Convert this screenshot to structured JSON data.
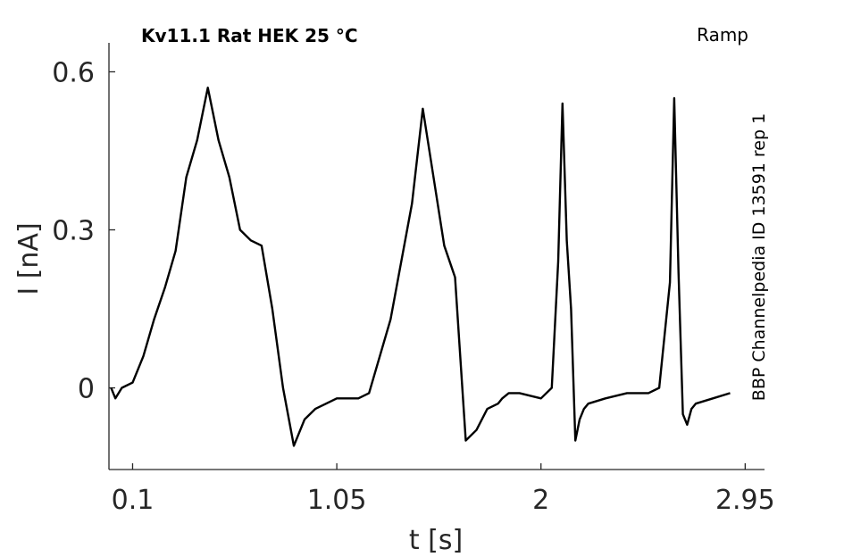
{
  "chart_data": {
    "type": "line",
    "title": "Kv11.1  Rat  HEK  25 °C",
    "protocol_label": "Ramp",
    "side_label": "BBP Channelpedia ID 13591 rep 1",
    "xlabel": "t [s]",
    "ylabel": "I [nA]",
    "xlim": [
      -0.01,
      3.04
    ],
    "ylim": [
      -0.155,
      0.655
    ],
    "xticks": [
      0.1,
      1.05,
      2,
      2.95
    ],
    "xtick_labels": [
      "0.1",
      "1.05",
      "2",
      "2.95"
    ],
    "yticks": [
      0,
      0.3,
      0.6
    ],
    "ytick_labels": [
      "0",
      "0.3",
      "0.6"
    ],
    "grid": false,
    "line_color": "#000000",
    "series": [
      {
        "x": [
          0.0,
          0.02,
          0.05,
          0.1,
          0.15,
          0.2,
          0.25,
          0.3,
          0.35,
          0.4,
          0.45,
          0.5,
          0.55,
          0.6,
          0.65,
          0.7,
          0.75,
          0.8,
          0.85,
          0.9,
          0.95,
          1.0,
          1.05,
          1.1,
          1.15,
          1.2,
          1.3,
          1.4,
          1.45,
          1.5,
          1.55,
          1.6,
          1.65,
          1.7,
          1.75,
          1.8,
          1.82,
          1.85,
          1.9,
          2.0,
          2.05,
          2.08,
          2.1,
          2.12,
          2.14,
          2.16,
          2.18,
          2.2,
          2.22,
          2.3,
          2.4,
          2.5,
          2.55,
          2.6,
          2.62,
          2.64,
          2.66,
          2.68,
          2.7,
          2.72,
          2.8,
          2.88
        ],
        "y": [
          0.0,
          -0.02,
          0.0,
          0.01,
          0.06,
          0.13,
          0.19,
          0.26,
          0.4,
          0.47,
          0.57,
          0.47,
          0.4,
          0.3,
          0.28,
          0.27,
          0.15,
          0.0,
          -0.11,
          -0.06,
          -0.04,
          -0.03,
          -0.02,
          -0.02,
          -0.02,
          -0.01,
          0.13,
          0.35,
          0.53,
          0.4,
          0.27,
          0.21,
          -0.1,
          -0.08,
          -0.04,
          -0.03,
          -0.02,
          -0.01,
          -0.01,
          -0.02,
          0.0,
          0.24,
          0.54,
          0.28,
          0.15,
          -0.1,
          -0.06,
          -0.04,
          -0.03,
          -0.02,
          -0.01,
          -0.01,
          0.0,
          0.2,
          0.55,
          0.22,
          -0.05,
          -0.07,
          -0.04,
          -0.03,
          -0.02,
          -0.01
        ]
      }
    ]
  }
}
